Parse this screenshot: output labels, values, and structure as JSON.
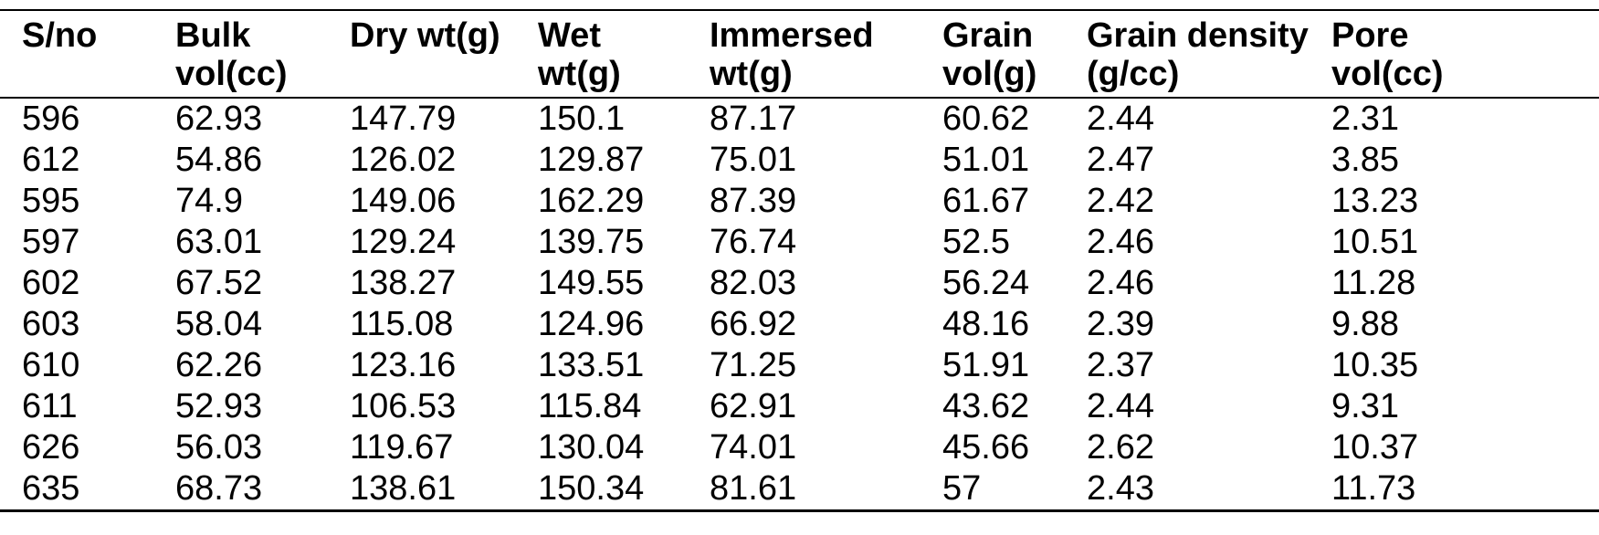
{
  "table": {
    "headers": [
      [
        "S/no"
      ],
      [
        "Bulk",
        "vol(cc)"
      ],
      [
        "Dry wt(g)"
      ],
      [
        "Wet",
        "wt(g)"
      ],
      [
        "Immersed",
        "wt(g)"
      ],
      [
        "Grain",
        "vol(g)"
      ],
      [
        "Grain density",
        "(g/cc)"
      ],
      [
        "Pore",
        "vol(cc)"
      ]
    ],
    "rows": [
      [
        "596",
        "62.93",
        "147.79",
        "150.1",
        "87.17",
        "60.62",
        "2.44",
        "2.31"
      ],
      [
        "612",
        "54.86",
        "126.02",
        "129.87",
        "75.01",
        "51.01",
        "2.47",
        "3.85"
      ],
      [
        "595",
        "74.9",
        "149.06",
        "162.29",
        "87.39",
        "61.67",
        "2.42",
        "13.23"
      ],
      [
        "597",
        "63.01",
        "129.24",
        "139.75",
        "76.74",
        "52.5",
        "2.46",
        "10.51"
      ],
      [
        "602",
        "67.52",
        "138.27",
        "149.55",
        "82.03",
        "56.24",
        "2.46",
        "11.28"
      ],
      [
        "603",
        "58.04",
        "115.08",
        "124.96",
        "66.92",
        "48.16",
        "2.39",
        "9.88"
      ],
      [
        "610",
        "62.26",
        "123.16",
        "133.51",
        "71.25",
        "51.91",
        "2.37",
        "10.35"
      ],
      [
        "611",
        "52.93",
        "106.53",
        "115.84",
        "62.91",
        "43.62",
        "2.44",
        "9.31"
      ],
      [
        "626",
        "56.03",
        "119.67",
        "130.04",
        "74.01",
        "45.66",
        "2.62",
        "10.37"
      ],
      [
        "635",
        "68.73",
        "138.61",
        "150.34",
        "81.61",
        "57",
        "2.43",
        "11.73"
      ]
    ]
  }
}
